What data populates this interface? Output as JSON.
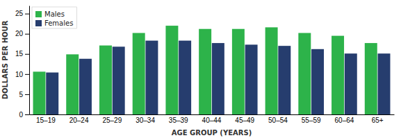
{
  "chart_data": {
    "type": "bar",
    "categories": [
      "15–19",
      "20–24",
      "25–29",
      "30–34",
      "35–39",
      "40–44",
      "45–49",
      "50–54",
      "55–59",
      "60–64",
      "65+"
    ],
    "series": [
      {
        "name": "Males",
        "color": "#2db34a",
        "values": [
          10.6,
          14.9,
          17.1,
          20.2,
          22.0,
          21.2,
          21.2,
          21.6,
          20.2,
          19.5,
          17.7
        ]
      },
      {
        "name": "Females",
        "color": "#263d6e",
        "values": [
          10.4,
          13.8,
          16.8,
          18.3,
          18.3,
          17.7,
          17.3,
          17.0,
          16.2,
          15.1,
          15.1
        ]
      }
    ],
    "xlabel": "AGE GROUP (YEARS)",
    "ylabel": "DOLLARS PER HOUR",
    "ylim": [
      0,
      27
    ],
    "yticks": [
      0,
      5,
      10,
      15,
      20,
      25
    ],
    "grid": false,
    "legend": "upper left"
  }
}
